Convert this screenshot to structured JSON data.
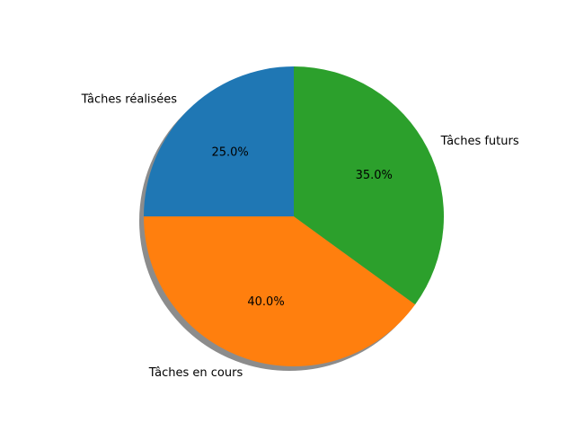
{
  "chart_data": {
    "type": "pie",
    "title": "",
    "shadow": true,
    "start_angle_deg": 90,
    "direction": "counterclockwise",
    "slices": [
      {
        "label": "Tâches réalisées",
        "value": 25.0,
        "pct_label": "25.0%",
        "color": "#1f77b4"
      },
      {
        "label": "Tâches en cours",
        "value": 40.0,
        "pct_label": "40.0%",
        "color": "#ff7f0e"
      },
      {
        "label": "Tâches futurs",
        "value": 35.0,
        "pct_label": "35.0%",
        "color": "#2ca02c"
      }
    ]
  }
}
